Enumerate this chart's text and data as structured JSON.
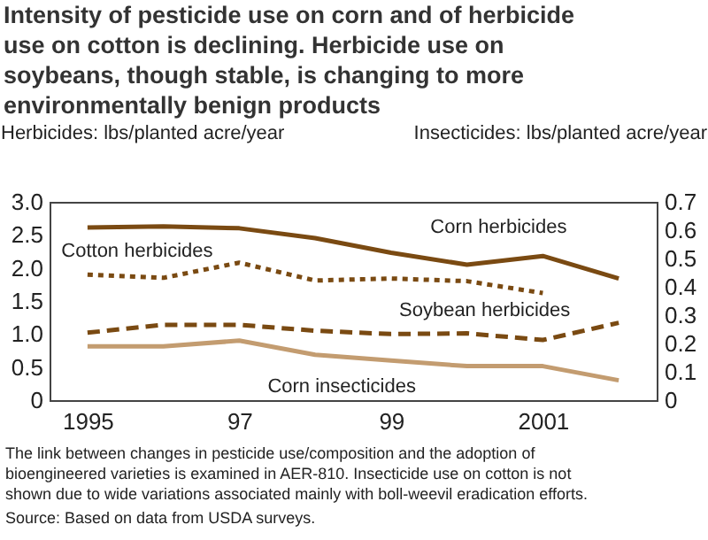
{
  "chart_data": {
    "type": "line",
    "title": "Intensity of pesticide use on corn and of herbicide use on cotton is declining. Herbicide use on soybeans, though stable, is changing to more environmentally benign products",
    "ylabel": "Herbicides: lbs/planted acre/year",
    "y2label": "Insecticides: lbs/planted acre/year",
    "x": [
      1995,
      1996,
      1997,
      1998,
      1999,
      2000,
      2001,
      2002
    ],
    "xlim": [
      1994.5,
      2002.5
    ],
    "xticks": [
      {
        "value": 1995,
        "label": "1995"
      },
      {
        "value": 1997,
        "label": "97"
      },
      {
        "value": 1999,
        "label": "99"
      },
      {
        "value": 2001,
        "label": "2001"
      }
    ],
    "ylim": [
      0,
      3.0
    ],
    "yticks": [
      0,
      {
        "value": 0.5,
        "label": "0.5"
      },
      {
        "value": 1.0,
        "label": "1.0"
      },
      {
        "value": 1.5,
        "label": "1.5"
      },
      {
        "value": 2.0,
        "label": "2.0"
      },
      {
        "value": 2.5,
        "label": "2.5"
      },
      {
        "value": 3.0,
        "label": "3.0"
      }
    ],
    "y2lim": [
      0,
      0.7
    ],
    "y2ticks": [
      0,
      0.1,
      0.2,
      0.3,
      0.4,
      0.5,
      0.6,
      0.7
    ],
    "grid": false,
    "marker": "none",
    "series": [
      {
        "name": "Corn herbicides",
        "color": "#7a4a12",
        "line_style": "solid",
        "values": [
          2.61,
          2.63,
          2.6,
          2.45,
          2.23,
          2.05,
          2.18,
          1.84
        ]
      },
      {
        "name": "Cotton herbicides",
        "color": "#7a4a12",
        "line_style": "dotted",
        "values": [
          1.9,
          1.85,
          2.08,
          1.81,
          1.84,
          1.8,
          1.62,
          null
        ]
      },
      {
        "name": "Soybean herbicides",
        "color": "#7a4a12",
        "line_style": "dashed",
        "values": [
          1.02,
          1.14,
          1.14,
          1.05,
          1.0,
          1.01,
          0.91,
          1.17
        ]
      },
      {
        "name": "Corn insecticides",
        "color": "#c39c70",
        "line_style": "solid",
        "axis": "y2",
        "values": [
          0.19,
          0.19,
          0.21,
          0.16,
          0.14,
          0.12,
          0.12,
          0.07
        ]
      }
    ],
    "annotations": [
      "The link between changes in pesticide use/composition and the adoption of bioengineered varieties is examined in AER-810. Insecticide use on cotton is not shown due to wide variations associated mainly with boll-weevil eradication efforts.",
      "Source: Based on data from USDA surveys."
    ]
  }
}
